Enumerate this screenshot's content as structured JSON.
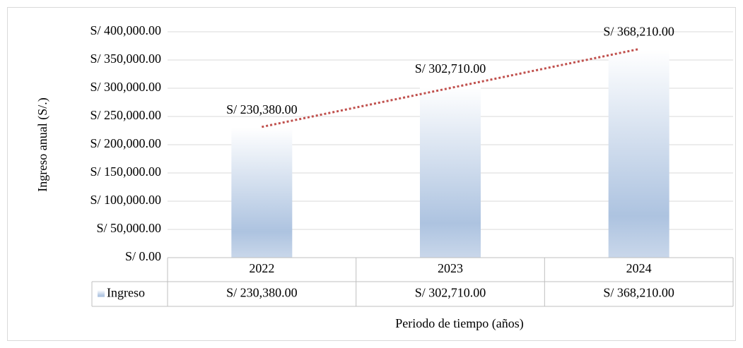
{
  "chart_data": {
    "type": "bar",
    "y_label": "Ingreso anual (S/.)",
    "x_label": "Periodo de tiempo (años)",
    "categories": [
      "2022",
      "2023",
      "2024"
    ],
    "series": [
      {
        "name": "Ingreso",
        "color": "#adc3e0",
        "values": [
          230380,
          302710,
          368210
        ],
        "value_labels": [
          "S/ 230,380.00",
          "S/ 302,710.00",
          "S/ 368,210.00"
        ]
      }
    ],
    "ylim": [
      0,
      400000
    ],
    "yticks": [
      {
        "value": 0,
        "label": "S/ 0.00"
      },
      {
        "value": 50000,
        "label": "S/ 50,000.00"
      },
      {
        "value": 100000,
        "label": "S/ 100,000.00"
      },
      {
        "value": 150000,
        "label": "S/ 150,000.00"
      },
      {
        "value": 200000,
        "label": "S/ 200,000.00"
      },
      {
        "value": 250000,
        "label": "S/ 250,000.00"
      },
      {
        "value": 300000,
        "label": "S/ 300,000.00"
      },
      {
        "value": 350000,
        "label": "S/ 350,000.00"
      },
      {
        "value": 400000,
        "label": "S/ 400,000.00"
      }
    ],
    "grid": true,
    "trendline": "linear",
    "trendline_color": "#c0504d",
    "data_table": true
  }
}
